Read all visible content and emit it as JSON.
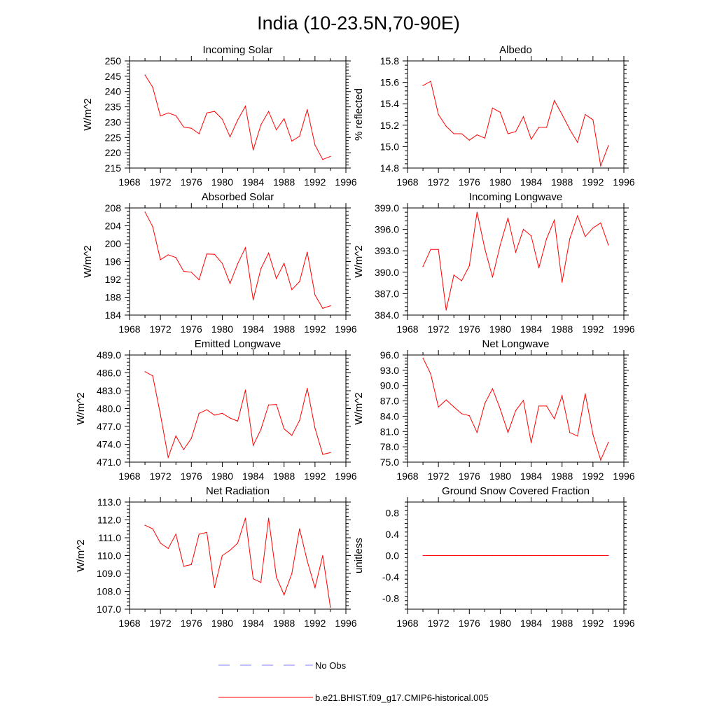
{
  "title": "India (10-23.5N,70-90E)",
  "colors": {
    "model": "#ff0000",
    "obs": "#7f7fff",
    "axis": "#000000"
  },
  "legend": {
    "obs_label": "No Obs",
    "model_label": "b.e21.BHIST.f09_g17.CMIP6-historical.005"
  },
  "chart_data": [
    {
      "type": "line",
      "title": "Incoming Solar",
      "ylabel": "W/m^2",
      "xlabel": "",
      "xlim": [
        1968,
        1996
      ],
      "ylim": [
        215,
        250
      ],
      "xticks": [
        1968,
        1972,
        1976,
        1980,
        1984,
        1988,
        1992,
        1996
      ],
      "yticks": [
        215,
        220,
        225,
        230,
        235,
        240,
        245,
        250
      ],
      "ydecimals": 0,
      "x": [
        1970,
        1971,
        1972,
        1973,
        1974,
        1975,
        1976,
        1977,
        1978,
        1979,
        1980,
        1981,
        1982,
        1983,
        1984,
        1985,
        1986,
        1987,
        1988,
        1989,
        1990,
        1991,
        1992,
        1993,
        1994
      ],
      "series": [
        {
          "name": "b.e21.BHIST.f09_g17.CMIP6-historical.005",
          "values": [
            245.4,
            241.4,
            232.0,
            233.0,
            232.1,
            228.4,
            228.0,
            226.2,
            233.0,
            233.5,
            231.0,
            225.2,
            230.7,
            235.2,
            220.9,
            229.1,
            233.5,
            227.5,
            231.1,
            223.8,
            225.4,
            234.1,
            222.5,
            217.8,
            218.8
          ]
        }
      ]
    },
    {
      "type": "line",
      "title": "Albedo",
      "ylabel": "% reflected",
      "xlabel": "",
      "xlim": [
        1968,
        1996
      ],
      "ylim": [
        14.8,
        15.8
      ],
      "xticks": [
        1968,
        1972,
        1976,
        1980,
        1984,
        1988,
        1992,
        1996
      ],
      "yticks": [
        14.8,
        15.0,
        15.2,
        15.4,
        15.6,
        15.8
      ],
      "ydecimals": 1,
      "x": [
        1970,
        1971,
        1972,
        1973,
        1974,
        1975,
        1976,
        1977,
        1978,
        1979,
        1980,
        1981,
        1982,
        1983,
        1984,
        1985,
        1986,
        1987,
        1988,
        1989,
        1990,
        1991,
        1992,
        1993,
        1994
      ],
      "series": [
        {
          "name": "b.e21.BHIST.f09_g17.CMIP6-historical.005",
          "values": [
            15.57,
            15.61,
            15.3,
            15.19,
            15.12,
            15.12,
            15.06,
            15.11,
            15.08,
            15.36,
            15.32,
            15.12,
            15.14,
            15.28,
            15.07,
            15.18,
            15.18,
            15.43,
            15.3,
            15.16,
            15.04,
            15.3,
            15.25,
            14.82,
            15.01
          ]
        }
      ]
    },
    {
      "type": "line",
      "title": "Absorbed Solar",
      "ylabel": "W/m^2",
      "xlabel": "",
      "xlim": [
        1968,
        1996
      ],
      "ylim": [
        184,
        208
      ],
      "xticks": [
        1968,
        1972,
        1976,
        1980,
        1984,
        1988,
        1992,
        1996
      ],
      "yticks": [
        184,
        188,
        192,
        196,
        200,
        204,
        208
      ],
      "ydecimals": 0,
      "x": [
        1970,
        1971,
        1972,
        1973,
        1974,
        1975,
        1976,
        1977,
        1978,
        1979,
        1980,
        1981,
        1982,
        1983,
        1984,
        1985,
        1986,
        1987,
        1988,
        1989,
        1990,
        1991,
        1992,
        1993,
        1994
      ],
      "series": [
        {
          "name": "b.e21.BHIST.f09_g17.CMIP6-historical.005",
          "values": [
            207.1,
            203.8,
            196.4,
            197.5,
            196.9,
            193.8,
            193.6,
            191.9,
            197.7,
            197.6,
            195.6,
            191.1,
            195.5,
            199.1,
            187.4,
            194.4,
            197.9,
            192.2,
            195.6,
            189.7,
            191.5,
            198.1,
            188.5,
            185.5,
            186.1
          ]
        }
      ]
    },
    {
      "type": "line",
      "title": "Incoming Longwave",
      "ylabel": "W/m^2",
      "xlabel": "",
      "xlim": [
        1968,
        1996
      ],
      "ylim": [
        384,
        399
      ],
      "xticks": [
        1968,
        1972,
        1976,
        1980,
        1984,
        1988,
        1992,
        1996
      ],
      "yticks": [
        384,
        387,
        390,
        393,
        396,
        399
      ],
      "ydecimals": 1,
      "x": [
        1970,
        1971,
        1972,
        1973,
        1974,
        1975,
        1976,
        1977,
        1978,
        1979,
        1980,
        1981,
        1982,
        1983,
        1984,
        1985,
        1986,
        1987,
        1988,
        1989,
        1990,
        1991,
        1992,
        1993,
        1994
      ],
      "series": [
        {
          "name": "b.e21.BHIST.f09_g17.CMIP6-historical.005",
          "values": [
            390.8,
            393.2,
            393.2,
            384.7,
            389.6,
            388.8,
            390.9,
            398.4,
            393.3,
            389.3,
            393.8,
            397.6,
            392.8,
            396.0,
            395.1,
            390.6,
            394.7,
            397.3,
            388.6,
            394.7,
            397.9,
            395.0,
            396.2,
            396.9,
            393.8
          ]
        }
      ]
    },
    {
      "type": "line",
      "title": "Emitted Longwave",
      "ylabel": "W/m^2",
      "xlabel": "",
      "xlim": [
        1968,
        1996
      ],
      "ylim": [
        471,
        489
      ],
      "xticks": [
        1968,
        1972,
        1976,
        1980,
        1984,
        1988,
        1992,
        1996
      ],
      "yticks": [
        471,
        474,
        477,
        480,
        483,
        486,
        489
      ],
      "ydecimals": 1,
      "x": [
        1970,
        1971,
        1972,
        1973,
        1974,
        1975,
        1976,
        1977,
        1978,
        1979,
        1980,
        1981,
        1982,
        1983,
        1984,
        1985,
        1986,
        1987,
        1988,
        1989,
        1990,
        1991,
        1992,
        1993,
        1994
      ],
      "series": [
        {
          "name": "b.e21.BHIST.f09_g17.CMIP6-historical.005",
          "values": [
            486.2,
            485.5,
            479.0,
            471.8,
            475.4,
            473.1,
            475.0,
            479.2,
            479.8,
            478.9,
            479.2,
            478.4,
            477.9,
            483.1,
            473.8,
            476.5,
            480.6,
            480.7,
            476.6,
            475.5,
            478.0,
            483.4,
            476.7,
            472.3,
            472.6
          ]
        }
      ]
    },
    {
      "type": "line",
      "title": "Net Longwave",
      "ylabel": "W/m^2",
      "xlabel": "",
      "xlim": [
        1968,
        1996
      ],
      "ylim": [
        75,
        96
      ],
      "xticks": [
        1968,
        1972,
        1976,
        1980,
        1984,
        1988,
        1992,
        1996
      ],
      "yticks": [
        75,
        78,
        81,
        84,
        87,
        90,
        93,
        96
      ],
      "ydecimals": 1,
      "x": [
        1970,
        1971,
        1972,
        1973,
        1974,
        1975,
        1976,
        1977,
        1978,
        1979,
        1980,
        1981,
        1982,
        1983,
        1984,
        1985,
        1986,
        1987,
        1988,
        1989,
        1990,
        1991,
        1992,
        1993,
        1994
      ],
      "series": [
        {
          "name": "b.e21.BHIST.f09_g17.CMIP6-historical.005",
          "values": [
            95.4,
            92.3,
            85.8,
            87.2,
            85.8,
            84.5,
            84.1,
            80.8,
            86.5,
            89.4,
            85.4,
            80.8,
            85.1,
            87.1,
            78.8,
            86.0,
            86.0,
            83.5,
            88.0,
            80.8,
            80.1,
            88.4,
            80.4,
            75.4,
            78.9
          ]
        }
      ]
    },
    {
      "type": "line",
      "title": "Net Radiation",
      "ylabel": "W/m^2",
      "xlabel": "",
      "xlim": [
        1968,
        1996
      ],
      "ylim": [
        107,
        113
      ],
      "xticks": [
        1968,
        1972,
        1976,
        1980,
        1984,
        1988,
        1992,
        1996
      ],
      "yticks": [
        107,
        108,
        109,
        110,
        111,
        112,
        113
      ],
      "ydecimals": 1,
      "x": [
        1970,
        1971,
        1972,
        1973,
        1974,
        1975,
        1976,
        1977,
        1978,
        1979,
        1980,
        1981,
        1982,
        1983,
        1984,
        1985,
        1986,
        1987,
        1988,
        1989,
        1990,
        1991,
        1992,
        1993,
        1994
      ],
      "series": [
        {
          "name": "b.e21.BHIST.f09_g17.CMIP6-historical.005",
          "values": [
            111.7,
            111.5,
            110.7,
            110.4,
            111.2,
            109.4,
            109.5,
            111.2,
            111.3,
            108.2,
            110.0,
            110.3,
            110.7,
            112.1,
            108.7,
            108.5,
            112.1,
            108.8,
            107.8,
            109.0,
            111.5,
            109.7,
            108.2,
            110.0,
            107.1
          ]
        }
      ]
    },
    {
      "type": "line",
      "title": "Ground Snow Covered Fraction",
      "ylabel": "unitless",
      "xlabel": "",
      "xlim": [
        1968,
        1996
      ],
      "ylim": [
        -1.0,
        1.0
      ],
      "xticks": [
        1968,
        1972,
        1976,
        1980,
        1984,
        1988,
        1992,
        1996
      ],
      "yticks": [
        -0.8,
        -0.4,
        0.0,
        0.4,
        0.8
      ],
      "ydecimals": 1,
      "x": [
        1970,
        1971,
        1972,
        1973,
        1974,
        1975,
        1976,
        1977,
        1978,
        1979,
        1980,
        1981,
        1982,
        1983,
        1984,
        1985,
        1986,
        1987,
        1988,
        1989,
        1990,
        1991,
        1992,
        1993,
        1994
      ],
      "series": [
        {
          "name": "b.e21.BHIST.f09_g17.CMIP6-historical.005",
          "values": [
            0,
            0,
            0,
            0,
            0,
            0,
            0,
            0,
            0,
            0,
            0,
            0,
            0,
            0,
            0,
            0,
            0,
            0,
            0,
            0,
            0,
            0,
            0,
            0,
            0
          ]
        }
      ]
    }
  ]
}
